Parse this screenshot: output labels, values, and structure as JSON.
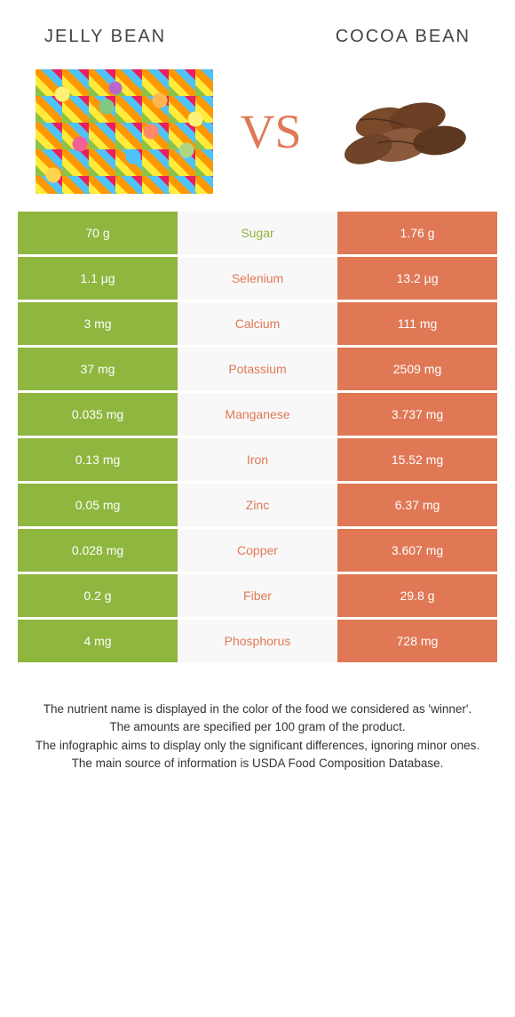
{
  "header": {
    "left_title": "Jelly bean",
    "right_title": "Cocoa bean",
    "vs_text": "VS"
  },
  "colors": {
    "left_bar": "#8fb63f",
    "right_bar": "#e07856",
    "row_bg": "#f8f8f8",
    "cell_text": "#ffffff"
  },
  "rows": [
    {
      "left": "70 g",
      "label": "Sugar",
      "right": "1.76 g",
      "winner": "left"
    },
    {
      "left": "1.1 µg",
      "label": "Selenium",
      "right": "13.2 µg",
      "winner": "right"
    },
    {
      "left": "3 mg",
      "label": "Calcium",
      "right": "111 mg",
      "winner": "right"
    },
    {
      "left": "37 mg",
      "label": "Potassium",
      "right": "2509 mg",
      "winner": "right"
    },
    {
      "left": "0.035 mg",
      "label": "Manganese",
      "right": "3.737 mg",
      "winner": "right"
    },
    {
      "left": "0.13 mg",
      "label": "Iron",
      "right": "15.52 mg",
      "winner": "right"
    },
    {
      "left": "0.05 mg",
      "label": "Zinc",
      "right": "6.37 mg",
      "winner": "right"
    },
    {
      "left": "0.028 mg",
      "label": "Copper",
      "right": "3.607 mg",
      "winner": "right"
    },
    {
      "left": "0.2 g",
      "label": "Fiber",
      "right": "29.8 g",
      "winner": "right"
    },
    {
      "left": "4 mg",
      "label": "Phosphorus",
      "right": "728 mg",
      "winner": "right"
    }
  ],
  "footer": {
    "line1": "The nutrient name is displayed in the color of the food we considered as 'winner'.",
    "line2": "The amounts are specified per 100 gram of the product.",
    "line3": "The infographic aims to display only the significant differences, ignoring minor ones.",
    "line4": "The main source of information is USDA Food Composition Database."
  }
}
